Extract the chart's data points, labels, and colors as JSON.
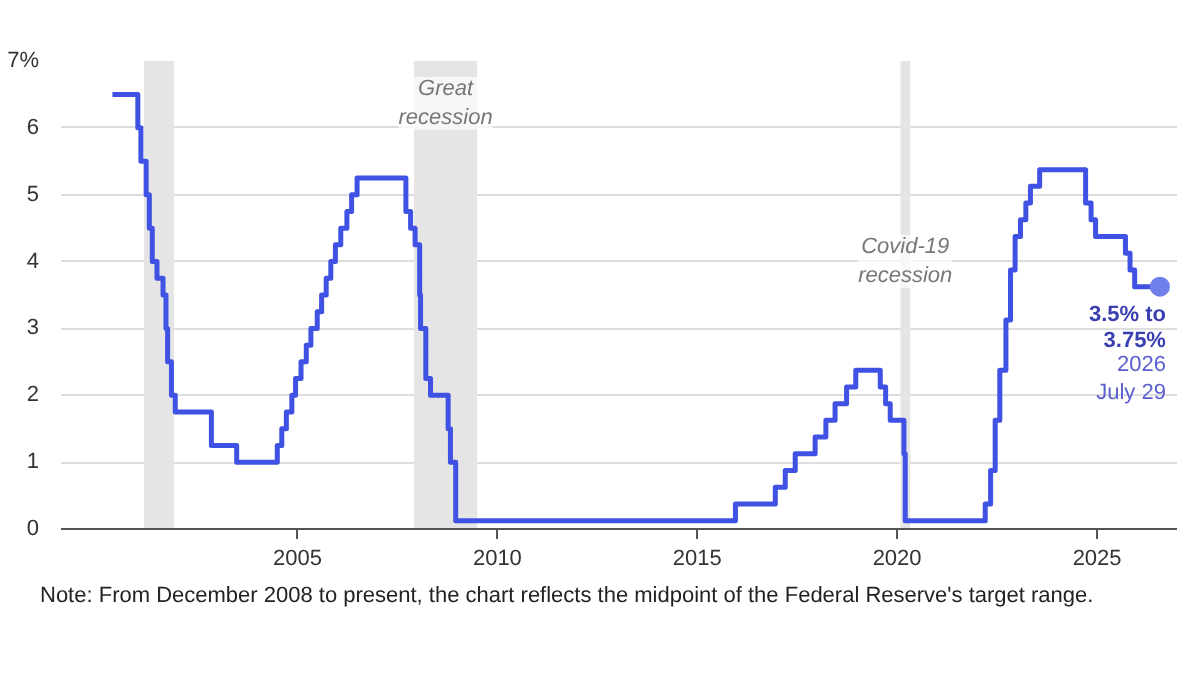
{
  "chart_data": {
    "type": "step",
    "xlim": [
      "1999-02-01",
      "2027-01-01"
    ],
    "ylim": [
      0,
      7
    ],
    "xticks": [
      {
        "value": "2005-01-01",
        "label": "2005"
      },
      {
        "value": "2010-01-01",
        "label": "2010"
      },
      {
        "value": "2015-01-01",
        "label": "2015"
      },
      {
        "value": "2020-01-01",
        "label": "2020"
      },
      {
        "value": "2025-01-01",
        "label": "2025"
      }
    ],
    "yticks": [
      0,
      1,
      2,
      3,
      4,
      5,
      6,
      {
        "value": 7,
        "label": "7%"
      }
    ],
    "grid": "y",
    "line_style": "solid",
    "series": [
      {
        "color": "#3f52e3",
        "x": [
          "2000-05-16",
          "2001-01-03",
          "2001-01-31",
          "2001-03-20",
          "2001-04-18",
          "2001-05-15",
          "2001-06-27",
          "2001-08-21",
          "2001-09-17",
          "2001-10-02",
          "2001-11-06",
          "2001-12-11",
          "2002-11-06",
          "2003-06-25",
          "2004-06-30",
          "2004-08-10",
          "2004-09-21",
          "2004-11-10",
          "2004-12-14",
          "2005-02-02",
          "2005-03-22",
          "2005-05-03",
          "2005-06-30",
          "2005-08-09",
          "2005-09-20",
          "2005-11-01",
          "2005-12-13",
          "2006-01-31",
          "2006-03-28",
          "2006-05-10",
          "2006-06-29",
          "2007-09-18",
          "2007-10-31",
          "2007-12-11",
          "2008-01-22",
          "2008-01-30",
          "2008-03-18",
          "2008-04-30",
          "2008-10-08",
          "2008-10-29",
          "2008-12-16",
          "2015-12-16",
          "2016-12-14",
          "2017-03-15",
          "2017-06-14",
          "2017-12-13",
          "2018-03-21",
          "2018-06-13",
          "2018-09-26",
          "2018-12-19",
          "2019-07-31",
          "2019-09-18",
          "2019-10-30",
          "2020-03-03",
          "2020-03-15",
          "2022-03-16",
          "2022-05-04",
          "2022-06-15",
          "2022-07-27",
          "2022-09-21",
          "2022-11-02",
          "2022-12-14",
          "2023-02-01",
          "2023-03-22",
          "2023-05-03",
          "2023-07-26",
          "2024-09-18",
          "2024-11-07",
          "2024-12-18",
          "2025-09-17",
          "2025-10-29",
          "2025-12-10",
          "2026-07-29"
        ],
        "values": [
          6.5,
          6.0,
          5.5,
          5.0,
          4.5,
          4.0,
          3.75,
          3.5,
          3.0,
          2.5,
          2.0,
          1.75,
          1.25,
          1.0,
          1.25,
          1.5,
          1.75,
          2.0,
          2.25,
          2.5,
          2.75,
          3.0,
          3.25,
          3.5,
          3.75,
          4.0,
          4.25,
          4.5,
          4.75,
          5.0,
          5.25,
          4.75,
          4.5,
          4.25,
          3.5,
          3.0,
          2.25,
          2.0,
          1.5,
          1.0,
          0.125,
          0.375,
          0.625,
          0.875,
          1.125,
          1.375,
          1.625,
          1.875,
          2.125,
          2.375,
          2.125,
          1.875,
          1.625,
          1.125,
          0.125,
          0.375,
          0.875,
          1.625,
          2.375,
          3.125,
          3.875,
          4.375,
          4.625,
          4.875,
          5.125,
          5.375,
          4.875,
          4.625,
          4.375,
          4.125,
          3.875,
          3.625,
          3.625
        ]
      },
      {
        "type": "scatter",
        "color": "#7080ea",
        "marker": "circle",
        "x": [
          "2026-07-29"
        ],
        "values": [
          3.625
        ]
      }
    ],
    "bands": [
      {
        "axis": "x",
        "from": "2001-03-01",
        "to": "2001-11-30",
        "color": "#e5e5e5"
      },
      {
        "axis": "x",
        "from": "2007-12-01",
        "to": "2009-06-30",
        "color": "#e5e5e5",
        "label": "Great recession"
      },
      {
        "axis": "x",
        "from": "2020-02-01",
        "to": "2020-04-30",
        "color": "#e5e5e5"
      }
    ],
    "annotations": [
      {
        "text": "3.5% to 3.75% 2026 July 29",
        "x": "2026-07-29",
        "y": 3.625
      },
      {
        "text": "Covid-19 recession",
        "x": "2020-03-15",
        "y": 4.4
      },
      "Note: From December 2008 to present, the chart reflects the midpoint of the Federal Reserve's target range."
    ]
  }
}
